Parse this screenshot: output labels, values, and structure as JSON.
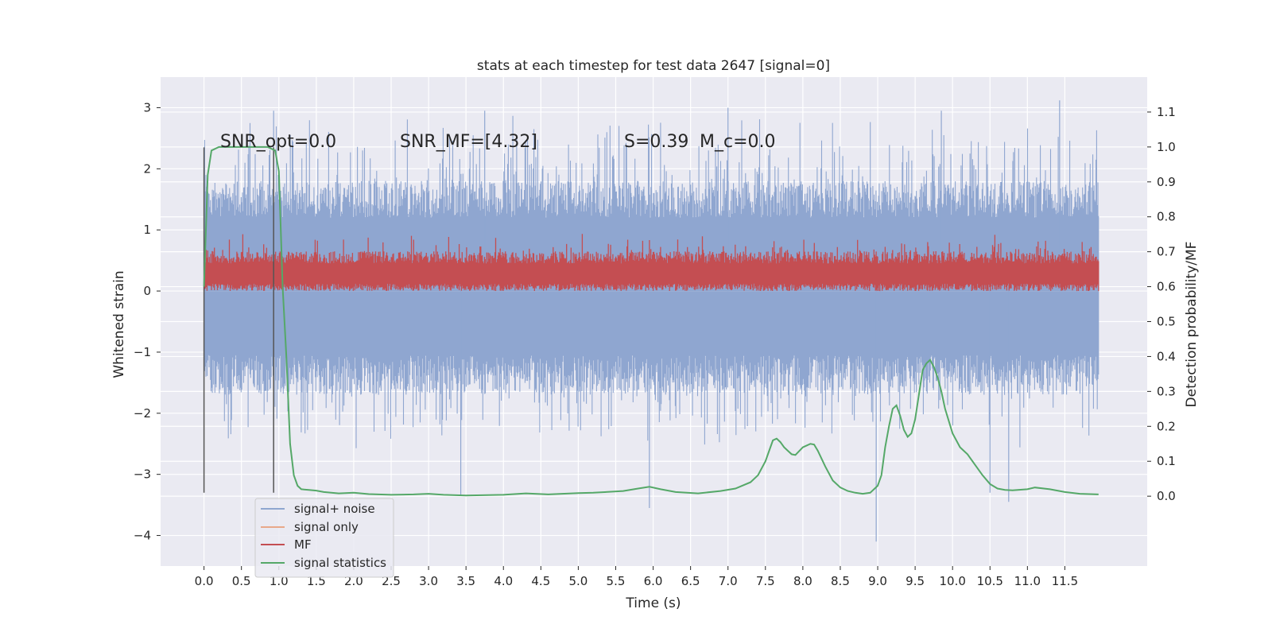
{
  "chart_data": {
    "type": "line",
    "title": "stats at each timestep for test data 2647 [signal=0]",
    "xlabel": "Time (s)",
    "ylabel_left": "Whitened strain",
    "ylabel_right": "Detection probability/MF",
    "xlim": [
      -0.58,
      12.6
    ],
    "ylim_left": [
      -4.5,
      3.5
    ],
    "ylim_right": [
      -0.2,
      1.2
    ],
    "x_ticks": [
      "0.0",
      "0.5",
      "1.0",
      "1.5",
      "2.0",
      "2.5",
      "3.0",
      "3.5",
      "4.0",
      "4.5",
      "5.0",
      "5.5",
      "6.0",
      "6.5",
      "7.0",
      "7.5",
      "8.0",
      "8.5",
      "9.0",
      "9.5",
      "10.0",
      "10.5",
      "11.0",
      "11.5"
    ],
    "y_ticks_left": [
      3,
      2,
      1,
      0,
      -1,
      -2,
      -3,
      -4
    ],
    "y_ticks_left_labels": [
      "3",
      "2",
      "1",
      "0",
      "−1",
      "−2",
      "−3",
      "−4"
    ],
    "y_ticks_right": [
      "0.0",
      "0.1",
      "0.2",
      "0.3",
      "0.4",
      "0.5",
      "0.6",
      "0.7",
      "0.8",
      "0.9",
      "1.0",
      "1.1"
    ],
    "grid": true,
    "legend_position": "lower-left",
    "annotations": {
      "snr_opt": "SNR_opt=0.0",
      "snr_mf": "SNR_MF=[4.32]",
      "s_stat": "S=0.39",
      "mc": "M_c=0.0"
    },
    "vlines_x": [
      0.0,
      0.93
    ],
    "series": [
      {
        "name": "signal+ noise",
        "color": "#8fa6d0",
        "axis": "left",
        "description_values": {
          "x_start": 0.0,
          "x_end": 11.95,
          "typical_range": [
            -1.7,
            1.7
          ],
          "extremes": [
            -4.1,
            3.1
          ]
        }
      },
      {
        "name": "signal only",
        "color": "#e8a889",
        "axis": "left",
        "values": []
      },
      {
        "name": "MF",
        "color": "#c44e52",
        "axis": "left",
        "description_values": {
          "x_start": 0.0,
          "x_end": 11.95,
          "typical_range": [
            0.05,
            0.6
          ],
          "extremes": [
            0.0,
            1.0
          ]
        }
      },
      {
        "name": "signal statistics",
        "color": "#55a868",
        "axis": "right",
        "x": [
          0.0,
          0.05,
          0.1,
          0.2,
          0.3,
          0.5,
          0.7,
          0.85,
          0.95,
          1.0,
          1.05,
          1.1,
          1.15,
          1.2,
          1.25,
          1.3,
          1.4,
          1.5,
          1.6,
          1.8,
          2.0,
          2.2,
          2.5,
          2.8,
          3.0,
          3.2,
          3.5,
          4.0,
          4.3,
          4.6,
          5.0,
          5.2,
          5.6,
          5.8,
          5.95,
          6.1,
          6.3,
          6.6,
          6.9,
          7.1,
          7.3,
          7.4,
          7.5,
          7.55,
          7.6,
          7.65,
          7.7,
          7.75,
          7.8,
          7.85,
          7.9,
          8.0,
          8.1,
          8.15,
          8.2,
          8.3,
          8.4,
          8.5,
          8.6,
          8.7,
          8.8,
          8.9,
          9.0,
          9.05,
          9.1,
          9.15,
          9.2,
          9.25,
          9.3,
          9.35,
          9.4,
          9.45,
          9.5,
          9.55,
          9.6,
          9.65,
          9.7,
          9.75,
          9.8,
          9.85,
          9.9,
          10.0,
          10.1,
          10.2,
          10.3,
          10.4,
          10.5,
          10.6,
          10.7,
          10.8,
          11.0,
          11.1,
          11.3,
          11.5,
          11.7,
          11.95
        ],
        "values": [
          0.6,
          0.92,
          0.99,
          1.0,
          1.0,
          1.0,
          1.0,
          1.0,
          0.99,
          0.93,
          0.6,
          0.4,
          0.15,
          0.06,
          0.03,
          0.02,
          0.018,
          0.016,
          0.012,
          0.008,
          0.01,
          0.006,
          0.004,
          0.005,
          0.007,
          0.004,
          0.002,
          0.004,
          0.008,
          0.005,
          0.009,
          0.01,
          0.015,
          0.022,
          0.027,
          0.02,
          0.012,
          0.008,
          0.015,
          0.022,
          0.04,
          0.06,
          0.1,
          0.13,
          0.16,
          0.165,
          0.155,
          0.14,
          0.13,
          0.12,
          0.118,
          0.14,
          0.15,
          0.148,
          0.13,
          0.085,
          0.045,
          0.025,
          0.015,
          0.01,
          0.007,
          0.01,
          0.03,
          0.06,
          0.14,
          0.2,
          0.25,
          0.26,
          0.23,
          0.19,
          0.17,
          0.18,
          0.22,
          0.29,
          0.36,
          0.38,
          0.39,
          0.37,
          0.34,
          0.3,
          0.25,
          0.18,
          0.14,
          0.12,
          0.09,
          0.06,
          0.035,
          0.022,
          0.018,
          0.017,
          0.02,
          0.025,
          0.02,
          0.012,
          0.007,
          0.005
        ]
      }
    ]
  }
}
